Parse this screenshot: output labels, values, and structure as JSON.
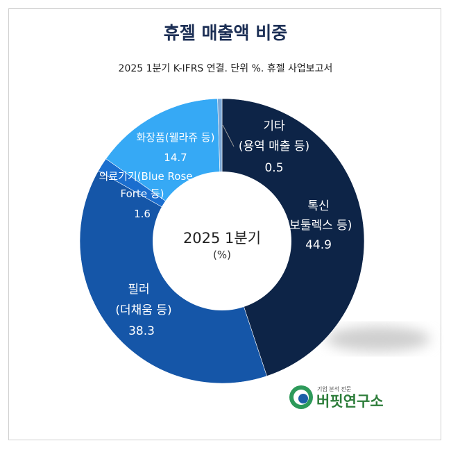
{
  "title": "휴젤 매출액 비중",
  "subtitle": "2025 1분기 K-IFRS 연결. 단위 %. 휴젤 사업보고서",
  "center": {
    "line1": "2025 1분기",
    "line2": "(%)"
  },
  "logo": {
    "tagline": "기업 분석 전문",
    "name": "버핏연구소"
  },
  "colors": {
    "toxin": "#0d2447",
    "filler": "#1556a8",
    "medical": "#1b6ecf",
    "cosmetics": "#36a9f5",
    "other": "#7aa7d6"
  },
  "chart_data": {
    "type": "donut",
    "title": "휴젤 매출액 비중",
    "subtitle": "2025 1분기 K-IFRS 연결. 단위 %. 휴젤 사업보고서",
    "center_label": "2025 1분기",
    "unit": "(%)",
    "slices": [
      {
        "label_lines": [
          "톡신",
          "(보툴렉스 등)"
        ],
        "value": 44.9,
        "color": "#0d2447"
      },
      {
        "label_lines": [
          "필러",
          "(더채움 등)"
        ],
        "value": 38.3,
        "color": "#1556a8"
      },
      {
        "label_lines": [
          "의료기기(Blue Rose",
          "Forte 등)"
        ],
        "value": 1.6,
        "color": "#1b6ecf"
      },
      {
        "label_lines": [
          "화장품(웰라쥬 등)"
        ],
        "value": 14.7,
        "color": "#36a9f5"
      },
      {
        "label_lines": [
          "기타",
          "(용역 매출 등)"
        ],
        "value": 0.5,
        "color": "#7aa7d6"
      }
    ]
  }
}
